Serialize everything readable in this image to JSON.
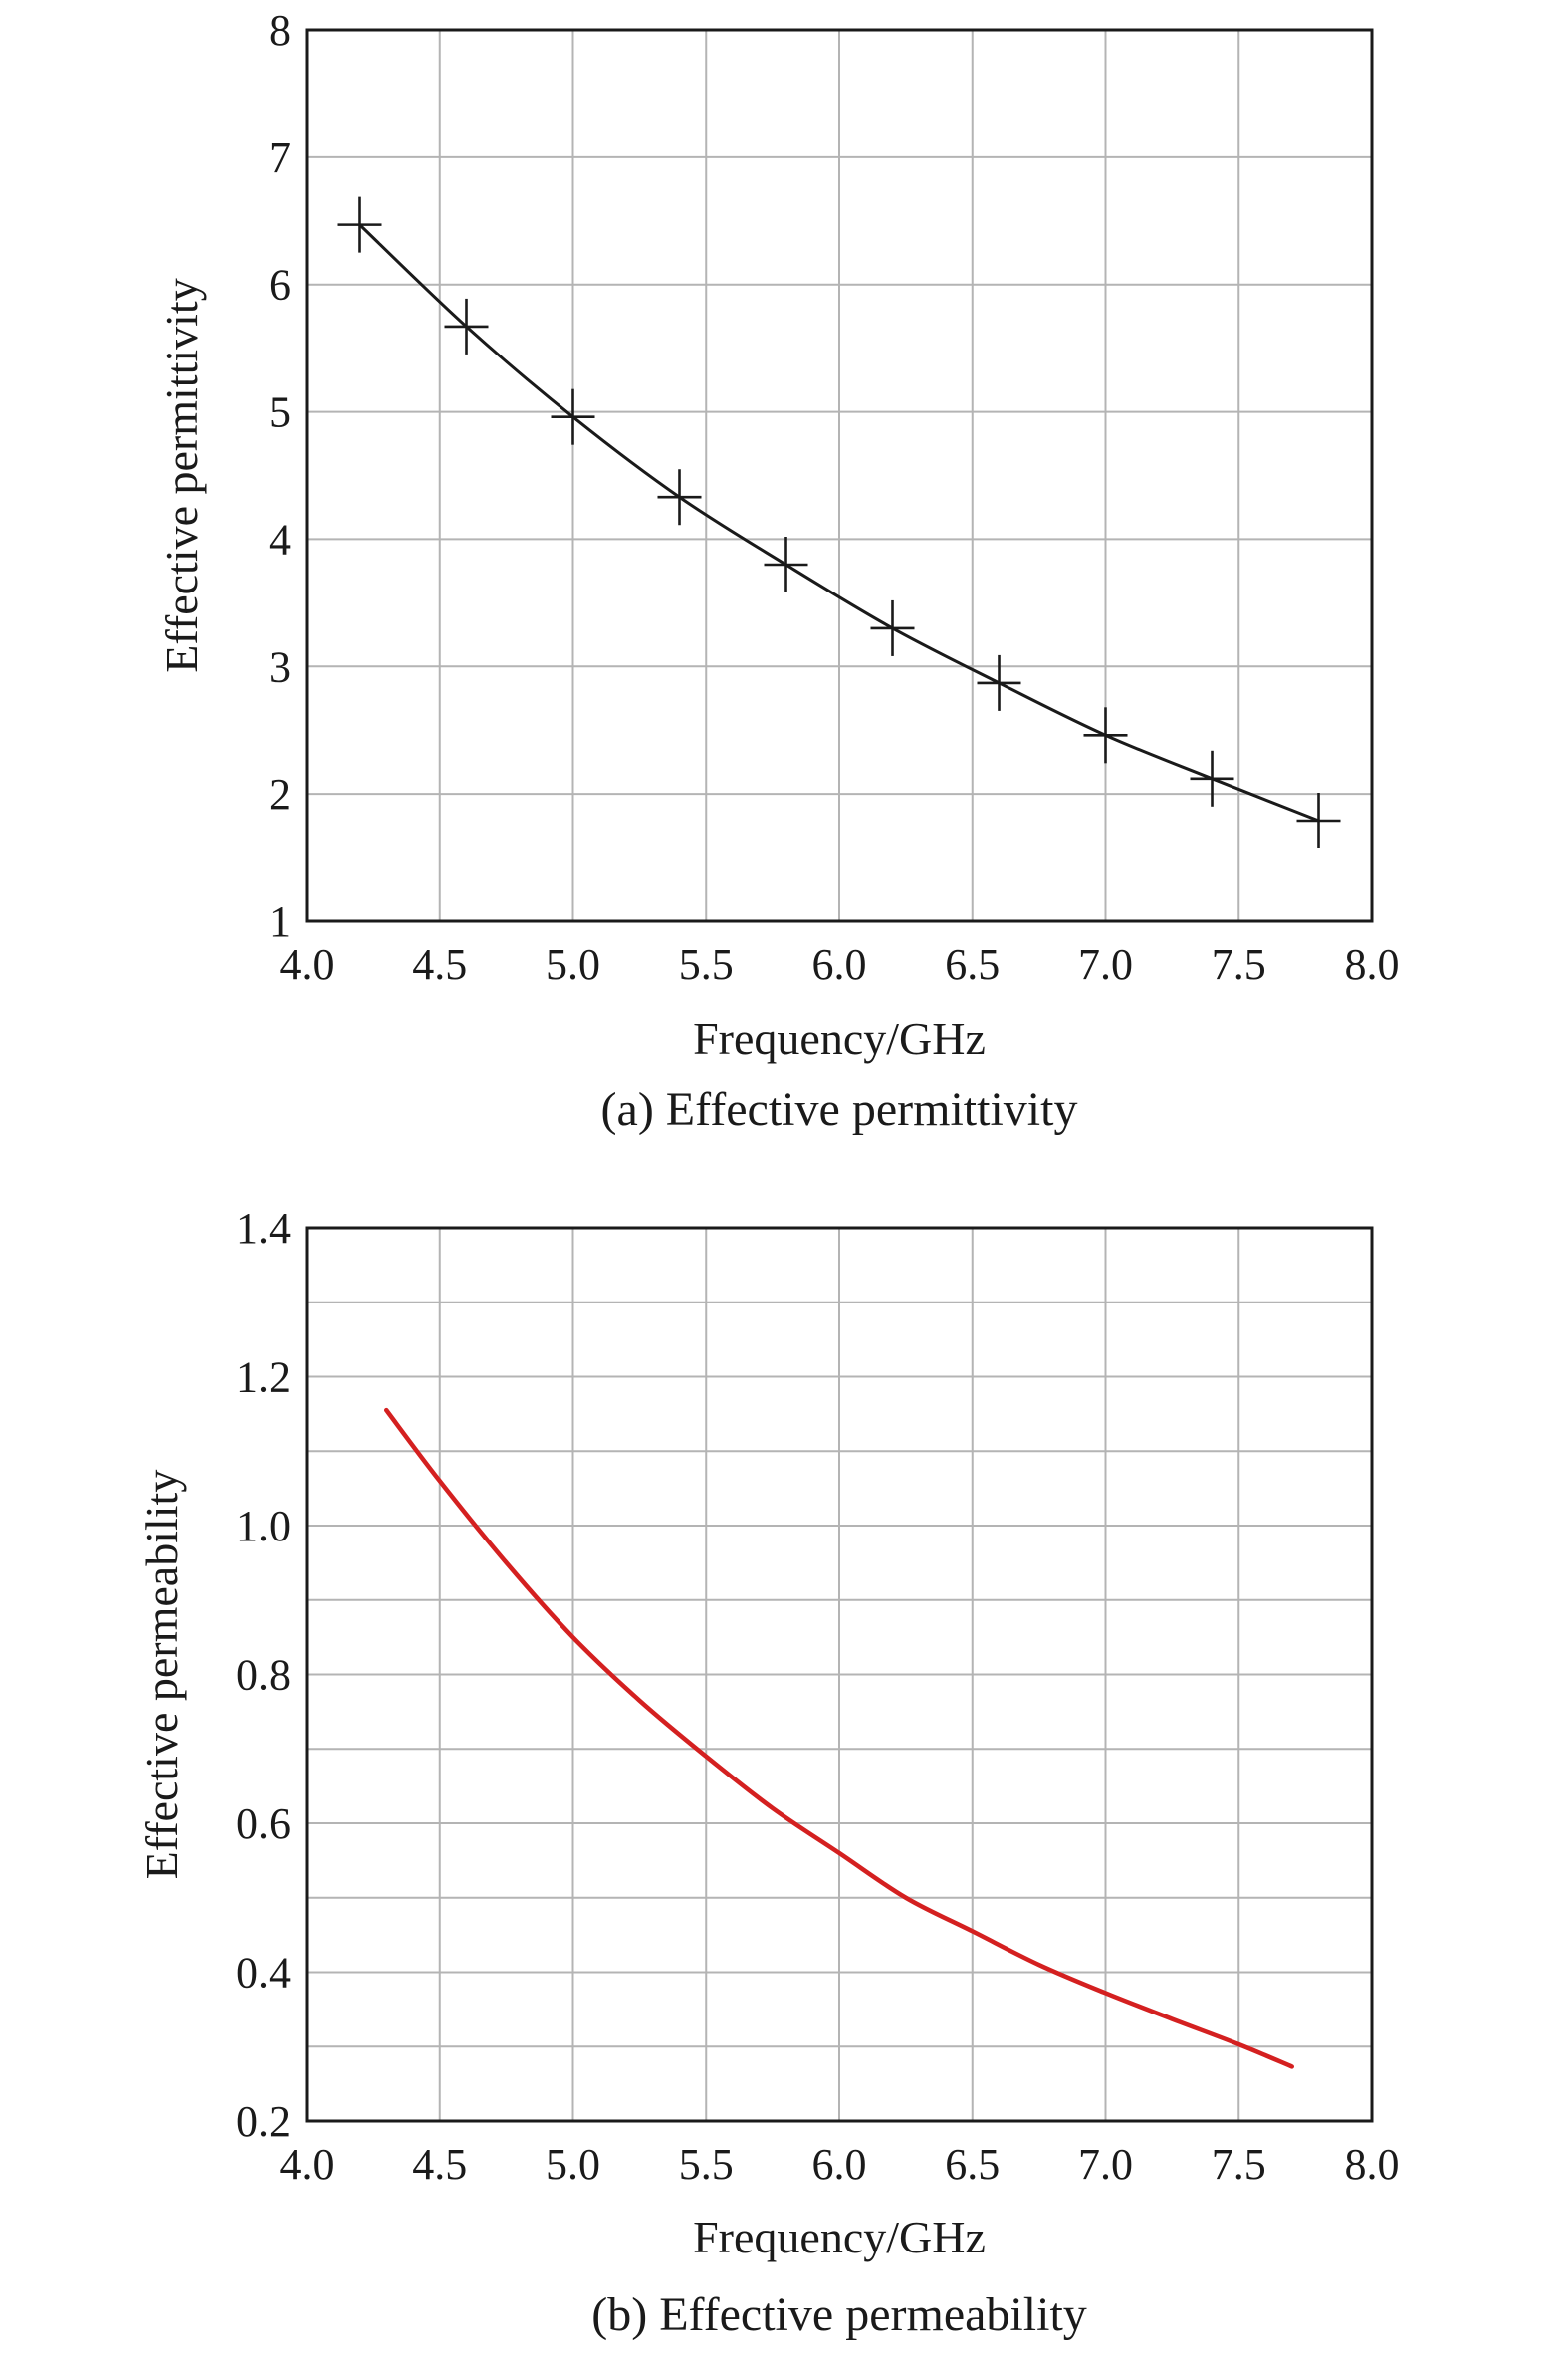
{
  "chart_data": [
    {
      "type": "line",
      "caption": "(a) Effective permittivity",
      "xlabel": "Frequency/GHz",
      "ylabel": "Effective permittivity",
      "xlim": [
        4.0,
        8.0
      ],
      "ylim": [
        1,
        8
      ],
      "x_ticks": [
        "4.0",
        "4.5",
        "5.0",
        "5.5",
        "6.0",
        "6.5",
        "7.0",
        "7.5",
        "8.0"
      ],
      "y_ticks": [
        "1",
        "2",
        "3",
        "4",
        "5",
        "6",
        "7",
        "8"
      ],
      "grid": true,
      "series": [
        {
          "style": "line-with-plus-markers",
          "color": "#1a1a1a",
          "x": [
            4.2,
            4.6,
            5.0,
            5.4,
            5.8,
            6.2,
            6.6,
            7.0,
            7.4,
            7.8
          ],
          "y": [
            6.47,
            5.67,
            4.96,
            4.33,
            3.8,
            3.3,
            2.87,
            2.46,
            2.12,
            1.79
          ]
        }
      ]
    },
    {
      "type": "line",
      "caption": "(b) Effective permeability",
      "xlabel": "Frequency/GHz",
      "ylabel": "Effective permeability",
      "xlim": [
        4.0,
        8.0
      ],
      "ylim": [
        0.2,
        1.4
      ],
      "x_ticks": [
        "4.0",
        "4.5",
        "5.0",
        "5.5",
        "6.0",
        "6.5",
        "7.0",
        "7.5",
        "8.0"
      ],
      "y_ticks": [
        "0.2",
        "0.4",
        "0.6",
        "0.8",
        "1.0",
        "1.2",
        "1.4"
      ],
      "grid": true,
      "series": [
        {
          "style": "line",
          "color": "#d42020",
          "x": [
            4.3,
            4.5,
            4.75,
            5.0,
            5.25,
            5.5,
            5.75,
            6.0,
            6.25,
            6.5,
            6.75,
            7.0,
            7.25,
            7.5,
            7.7
          ],
          "y": [
            1.155,
            1.06,
            0.95,
            0.85,
            0.765,
            0.69,
            0.62,
            0.56,
            0.5,
            0.455,
            0.41,
            0.372,
            0.337,
            0.303,
            0.273
          ]
        }
      ]
    }
  ]
}
